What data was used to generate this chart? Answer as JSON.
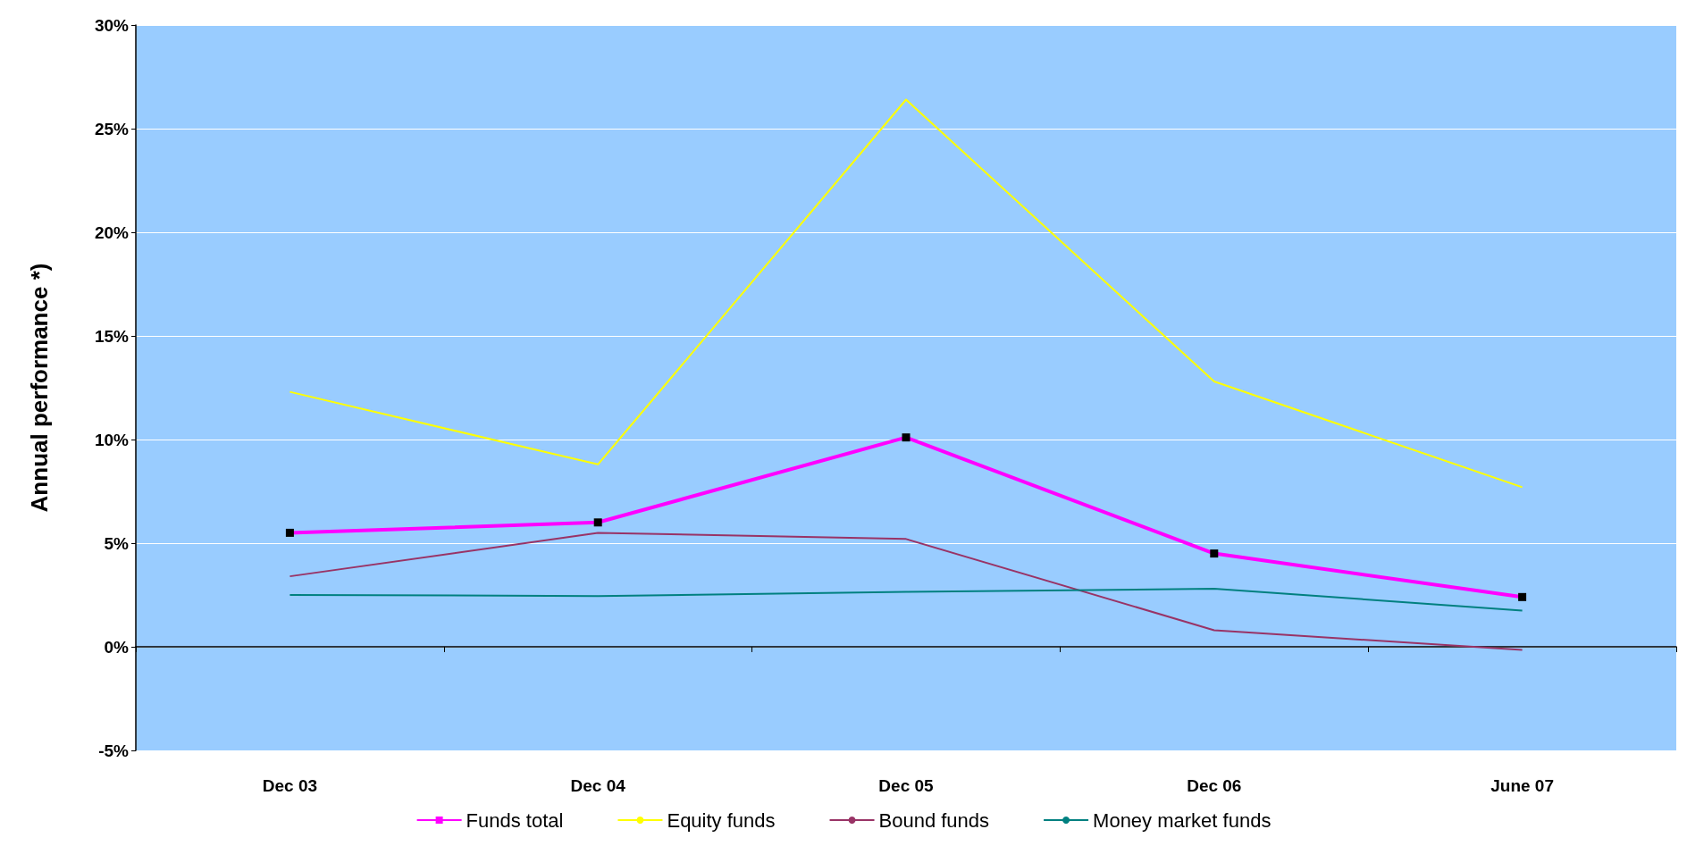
{
  "chart_data": {
    "type": "line",
    "ylabel": "Annual performance *)",
    "categories": [
      "Dec 03",
      "Dec 04",
      "Dec 05",
      "Dec 06",
      "June 07"
    ],
    "series": [
      {
        "name": "Funds total",
        "color": "#ff00ff",
        "marker": "square",
        "values": [
          5.5,
          6.0,
          10.1,
          4.5,
          2.4
        ]
      },
      {
        "name": "Equity funds",
        "color": "#ffff00",
        "marker": "none",
        "values": [
          12.3,
          8.8,
          26.4,
          12.8,
          7.7
        ]
      },
      {
        "name": "Bound funds",
        "color": "#993366",
        "marker": "none",
        "values": [
          3.4,
          5.5,
          5.2,
          0.8,
          -0.15
        ]
      },
      {
        "name": "Money market funds",
        "color": "#008080",
        "marker": "none",
        "values": [
          2.5,
          2.45,
          2.65,
          2.8,
          1.75
        ]
      }
    ],
    "ylim": [
      -5,
      30
    ],
    "yticks": [
      {
        "value": -5,
        "label": "-5%"
      },
      {
        "value": 0,
        "label": "0%"
      },
      {
        "value": 5,
        "label": "5%"
      },
      {
        "value": 10,
        "label": "10%"
      },
      {
        "value": 15,
        "label": "15%"
      },
      {
        "value": 20,
        "label": "20%"
      },
      {
        "value": 25,
        "label": "25%"
      },
      {
        "value": 30,
        "label": "30%"
      }
    ],
    "grid": "y",
    "legend": "bottom"
  }
}
